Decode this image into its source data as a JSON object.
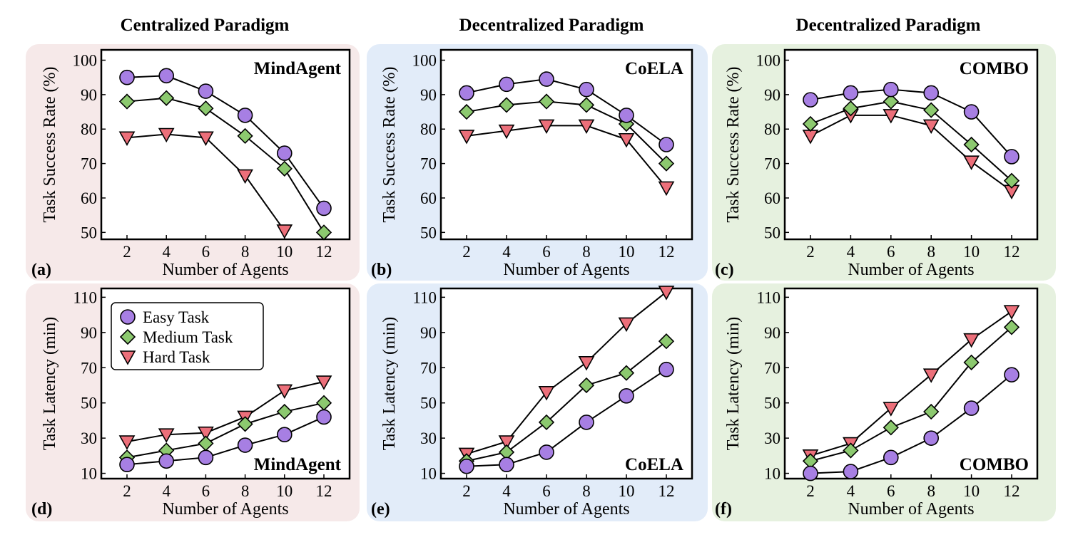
{
  "column_titles": [
    "Centralized Paradigm",
    "Decentralized Paradigm",
    "Decentralized Paradigm"
  ],
  "legend": [
    "Easy Task",
    "Medium Task",
    "Hard Task"
  ],
  "colors": {
    "easy": "#a77fe3",
    "medium": "#8cc96f",
    "hard": "#ec6f7a",
    "bg_centralized": "#f6e9e9",
    "bg_coela": "#e2ecf9",
    "bg_combo": "#e6f1df"
  },
  "chart_data": [
    {
      "id": "a",
      "panel_label": "(a)",
      "type": "line",
      "method": "MindAgent",
      "xlabel": "Number of Agents",
      "ylabel": "Task Success Rate (%)",
      "x": [
        2,
        4,
        6,
        8,
        10,
        12
      ],
      "ylim": [
        48,
        103
      ],
      "yticks": [
        50,
        60,
        70,
        80,
        90,
        100
      ],
      "xticks": [
        2,
        4,
        6,
        8,
        10,
        12
      ],
      "series": [
        {
          "name": "Easy Task",
          "values": [
            95,
            95.5,
            91,
            84,
            73,
            57
          ]
        },
        {
          "name": "Medium Task",
          "values": [
            88,
            89,
            86,
            78,
            68.5,
            50
          ]
        },
        {
          "name": "Hard Task",
          "values": [
            77.5,
            78.5,
            77.5,
            66.5,
            50.5,
            null
          ]
        }
      ]
    },
    {
      "id": "b",
      "panel_label": "(b)",
      "type": "line",
      "method": "CoELA",
      "xlabel": "Number of Agents",
      "ylabel": "Task Success Rate (%)",
      "x": [
        2,
        4,
        6,
        8,
        10,
        12
      ],
      "ylim": [
        48,
        103
      ],
      "yticks": [
        50,
        60,
        70,
        80,
        90,
        100
      ],
      "xticks": [
        2,
        4,
        6,
        8,
        10,
        12
      ],
      "series": [
        {
          "name": "Easy Task",
          "values": [
            90.5,
            93,
            94.5,
            91.5,
            84,
            75.5
          ]
        },
        {
          "name": "Medium Task",
          "values": [
            85,
            87,
            88,
            87,
            81.5,
            70
          ]
        },
        {
          "name": "Hard Task",
          "values": [
            78,
            79.5,
            81,
            81,
            77,
            63
          ]
        }
      ]
    },
    {
      "id": "c",
      "panel_label": "(c)",
      "type": "line",
      "method": "COMBO",
      "xlabel": "Number of Agents",
      "ylabel": "Task Success Rate (%)",
      "x": [
        2,
        4,
        6,
        8,
        10,
        12
      ],
      "ylim": [
        48,
        103
      ],
      "yticks": [
        50,
        60,
        70,
        80,
        90,
        100
      ],
      "xticks": [
        2,
        4,
        6,
        8,
        10,
        12
      ],
      "series": [
        {
          "name": "Easy Task",
          "values": [
            88.5,
            90.5,
            91.5,
            90.5,
            85,
            72
          ]
        },
        {
          "name": "Medium Task",
          "values": [
            81.5,
            86,
            88,
            85.5,
            75.5,
            65
          ]
        },
        {
          "name": "Hard Task",
          "values": [
            78,
            84,
            84,
            81,
            70.5,
            62
          ]
        }
      ]
    },
    {
      "id": "d",
      "panel_label": "(d)",
      "type": "line",
      "method": "MindAgent",
      "xlabel": "Number of Agents",
      "ylabel": "Task Latency (min)",
      "x": [
        2,
        4,
        6,
        8,
        10,
        12
      ],
      "ylim": [
        7,
        115
      ],
      "yticks": [
        10,
        30,
        50,
        70,
        90,
        110
      ],
      "xticks": [
        2,
        4,
        6,
        8,
        10,
        12
      ],
      "legend_position": "top-left",
      "method_label_position": "bottom-right",
      "series": [
        {
          "name": "Easy Task",
          "values": [
            15,
            17,
            19,
            26,
            32,
            42
          ]
        },
        {
          "name": "Medium Task",
          "values": [
            19,
            23,
            27,
            38,
            45,
            50
          ]
        },
        {
          "name": "Hard Task",
          "values": [
            28,
            32,
            33,
            42,
            57,
            62
          ]
        }
      ]
    },
    {
      "id": "e",
      "panel_label": "(e)",
      "type": "line",
      "method": "CoELA",
      "xlabel": "Number of Agents",
      "ylabel": "Task Latency (min)",
      "x": [
        2,
        4,
        6,
        8,
        10,
        12
      ],
      "ylim": [
        7,
        115
      ],
      "yticks": [
        10,
        30,
        50,
        70,
        90,
        110
      ],
      "xticks": [
        2,
        4,
        6,
        8,
        10,
        12
      ],
      "method_label_position": "bottom-right",
      "series": [
        {
          "name": "Easy Task",
          "values": [
            14,
            15,
            22,
            39,
            54,
            69
          ]
        },
        {
          "name": "Medium Task",
          "values": [
            17,
            22,
            39,
            60,
            67,
            85
          ]
        },
        {
          "name": "Hard Task",
          "values": [
            21,
            28,
            56,
            73,
            95,
            113
          ]
        }
      ]
    },
    {
      "id": "f",
      "panel_label": "(f)",
      "type": "line",
      "method": "COMBO",
      "xlabel": "Number of Agents",
      "ylabel": "Task Latency (min)",
      "x": [
        2,
        4,
        6,
        8,
        10,
        12
      ],
      "ylim": [
        7,
        115
      ],
      "yticks": [
        10,
        30,
        50,
        70,
        90,
        110
      ],
      "xticks": [
        2,
        4,
        6,
        8,
        10,
        12
      ],
      "method_label_position": "bottom-right",
      "series": [
        {
          "name": "Easy Task",
          "values": [
            10,
            11,
            19,
            30,
            47,
            66
          ]
        },
        {
          "name": "Medium Task",
          "values": [
            17,
            23,
            36,
            45,
            73,
            93
          ]
        },
        {
          "name": "Hard Task",
          "values": [
            20,
            27,
            47,
            66,
            86,
            102
          ]
        }
      ]
    }
  ]
}
